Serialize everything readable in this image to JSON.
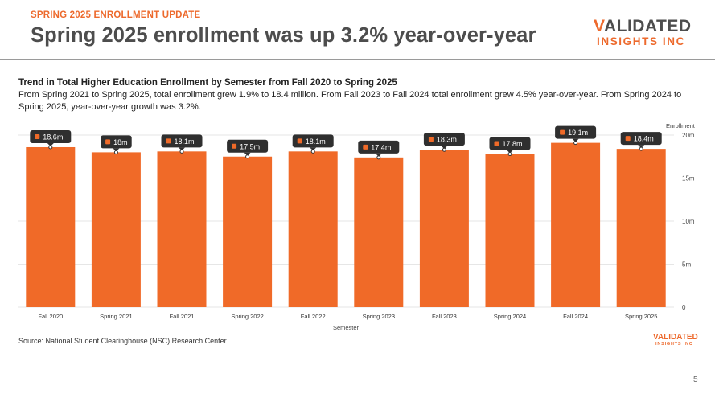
{
  "slide": {
    "eyebrow": "SPRING 2025 ENROLLMENT UPDATE",
    "headline": "Spring 2025 enrollment was up 3.2% year-over-year",
    "logo": {
      "word1": "VALIDATED",
      "word2": "INSIGHTS INC"
    },
    "source": "Source: National Student Clearinghouse (NSC) Research Center",
    "page_number": "5"
  },
  "colors": {
    "accent": "#ed6a2d",
    "bar": "#f06a28",
    "tooltip_bg": "#2f2f2f",
    "headline": "#4d4d4d"
  },
  "chart_data": {
    "type": "bar",
    "title": "Trend in Total Higher Education Enrollment by Semester from Fall 2020 to Spring 2025",
    "subtitle": "From Spring 2021 to Spring 2025, total enrollment grew 1.9% to 18.4 million. From Fall 2023 to Fall 2024 total enrollment grew 4.5% year-over-year. From Spring 2024 to Spring 2025, year-over-year growth was 3.2%.",
    "xlabel": "Semester",
    "ylabel": "Enrollment",
    "categories": [
      "Fall 2020",
      "Spring 2021",
      "Fall 2021",
      "Spring 2022",
      "Fall 2022",
      "Spring 2023",
      "Fall 2023",
      "Spring 2024",
      "Fall 2024",
      "Spring 2025"
    ],
    "values": [
      18.6,
      18.0,
      18.1,
      17.5,
      18.1,
      17.4,
      18.3,
      17.8,
      19.1,
      18.4
    ],
    "data_labels": [
      "18.6m",
      "18m",
      "18.1m",
      "17.5m",
      "18.1m",
      "17.4m",
      "18.3m",
      "17.8m",
      "19.1m",
      "18.4m"
    ],
    "ylim": [
      0,
      20
    ],
    "yticks": [
      0,
      5,
      10,
      15,
      20
    ],
    "ytick_labels": [
      "0",
      "5m",
      "10m",
      "15m",
      "20m"
    ],
    "y_axis_position": "right",
    "grid": true
  }
}
